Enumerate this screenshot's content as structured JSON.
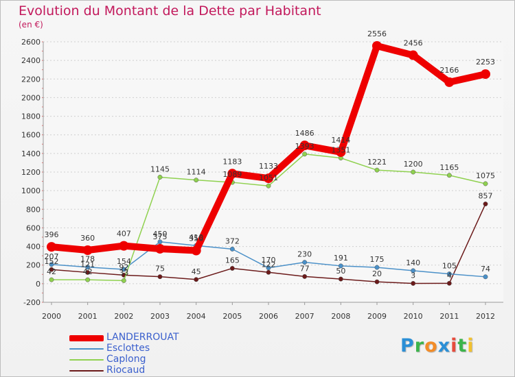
{
  "header": {
    "title": "Evolution du Montant de la Dette par Habitant",
    "unit": "(en €)"
  },
  "logo": {
    "text": "Proxiti",
    "letters": [
      "P",
      "r",
      "o",
      "x",
      "i",
      "t",
      "i"
    ],
    "letter_colors": [
      "#2b8fd6",
      "#3cb44b",
      "#f28c28",
      "#2b8fd6",
      "#e64b3c",
      "#3cb44b",
      "#f2c12e"
    ]
  },
  "chart_data": {
    "type": "line",
    "title": "Evolution du Montant de la Dette par Habitant",
    "subtitle": "(en €)",
    "x": [
      "2000",
      "2001",
      "2002",
      "2003",
      "2004",
      "2005",
      "2006",
      "2007",
      "2008",
      "2009",
      "2010",
      "2011",
      "2012"
    ],
    "ylim": [
      -200,
      2600
    ],
    "yticks": [
      -200,
      0,
      200,
      400,
      600,
      800,
      1000,
      1200,
      1400,
      1600,
      1800,
      2000,
      2200,
      2400,
      2600
    ],
    "grid": "horizontal dashed",
    "legend_position": "bottom-left",
    "series": [
      {
        "name": "LANDERROUAT",
        "color": "#ee0000",
        "values": [
          396,
          360,
          407,
          375,
          356,
          1183,
          1133,
          1486,
          1414,
          2556,
          2456,
          2166,
          2253
        ]
      },
      {
        "name": "Esclottes",
        "color": "#4a90c8",
        "values": [
          207,
          178,
          154,
          450,
          410,
          372,
          170,
          230,
          191,
          175,
          140,
          105,
          74
        ]
      },
      {
        "name": "Caplong",
        "color": "#8fd14f",
        "values": [
          42,
          42,
          33,
          1145,
          1114,
          1089,
          1051,
          1393,
          1351,
          1221,
          1200,
          1165,
          1075
        ]
      },
      {
        "name": "Riocaud",
        "color": "#6b1a1a",
        "values": [
          152,
          121,
          92,
          75,
          45,
          165,
          122,
          77,
          50,
          20,
          3,
          4,
          857
        ]
      }
    ],
    "data_labels": {
      "LANDERROUAT": [
        "396",
        "360",
        "407",
        "375",
        "356",
        "1183",
        "1133",
        "1486",
        "1414",
        "2556",
        "2456",
        "2166",
        "2253"
      ],
      "Esclottes": [
        "207",
        "178",
        "154",
        "450",
        "410",
        "372",
        "170",
        "230",
        "191",
        "175",
        "140",
        "105",
        "74"
      ],
      "Caplong": [
        "42",
        "42",
        "33",
        "1145",
        "1114",
        "1089",
        "1051",
        "1393",
        "1351",
        "1221",
        "1200",
        "1165",
        "1075"
      ],
      "Riocaud": [
        "152",
        "121",
        "92",
        "75",
        "45",
        "165",
        "122",
        "77",
        "50",
        "20",
        "3",
        "4",
        "857"
      ]
    }
  }
}
